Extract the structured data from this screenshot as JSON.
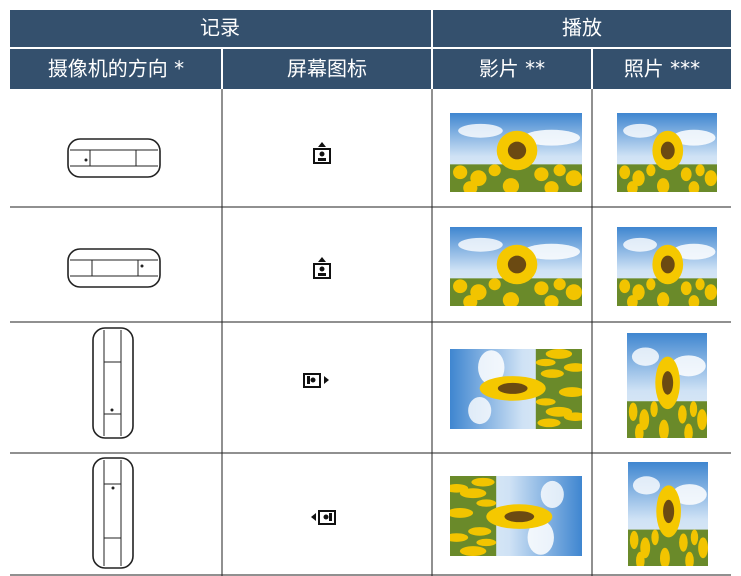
{
  "header": {
    "groups": [
      "记录",
      "播放"
    ],
    "columns": [
      "摄像机的方向 *",
      "屏幕图标",
      "影片 **",
      "照片 ***"
    ]
  }
}
